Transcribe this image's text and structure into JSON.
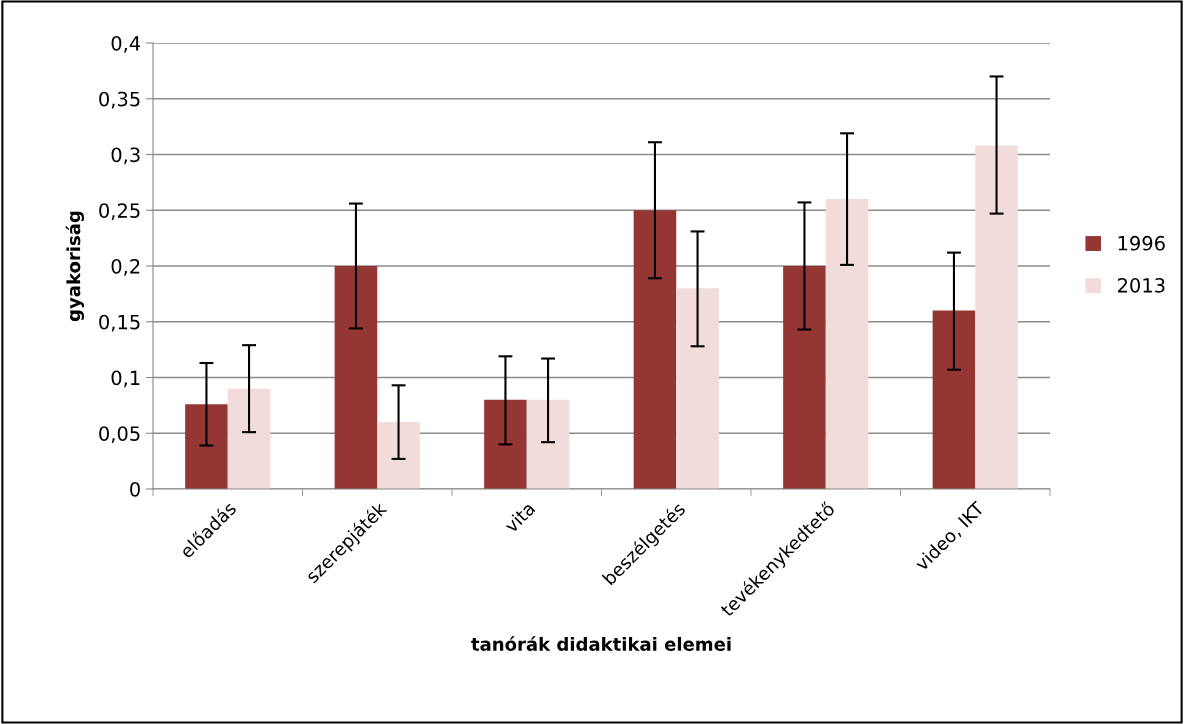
{
  "chart_data": {
    "type": "bar",
    "xlabel": "tanórák didaktikai elemei",
    "ylabel": "gyakoriság",
    "categories": [
      "előadás",
      "szerepjáték",
      "vita",
      "beszélgetés",
      "tevékenykedtető",
      "video, IKT"
    ],
    "series": [
      {
        "name": "1996",
        "color": "#943634",
        "values": [
          0.076,
          0.2,
          0.08,
          0.25,
          0.2,
          0.16
        ],
        "errors": [
          [
            0.039,
            0.113
          ],
          [
            0.144,
            0.256
          ],
          [
            0.04,
            0.119
          ],
          [
            0.189,
            0.311
          ],
          [
            0.143,
            0.257
          ],
          [
            0.107,
            0.212
          ]
        ]
      },
      {
        "name": "2013",
        "color": "#f2dcdb",
        "values": [
          0.09,
          0.06,
          0.08,
          0.18,
          0.26,
          0.308
        ],
        "errors": [
          [
            0.051,
            0.129
          ],
          [
            0.027,
            0.093
          ],
          [
            0.042,
            0.117
          ],
          [
            0.128,
            0.231
          ],
          [
            0.201,
            0.319
          ],
          [
            0.247,
            0.37
          ]
        ]
      }
    ],
    "ylim": [
      0,
      0.4
    ],
    "yticks": [
      {
        "value": 0,
        "label": "0"
      },
      {
        "value": 0.05,
        "label": "0,05"
      },
      {
        "value": 0.1,
        "label": "0,1"
      },
      {
        "value": 0.15,
        "label": "0,15"
      },
      {
        "value": 0.2,
        "label": "0,2"
      },
      {
        "value": 0.25,
        "label": "0,25"
      },
      {
        "value": 0.3,
        "label": "0,3"
      },
      {
        "value": 0.35,
        "label": "0,35"
      },
      {
        "value": 0.4,
        "label": "0,4"
      }
    ],
    "grid": "y",
    "legend": "right"
  }
}
